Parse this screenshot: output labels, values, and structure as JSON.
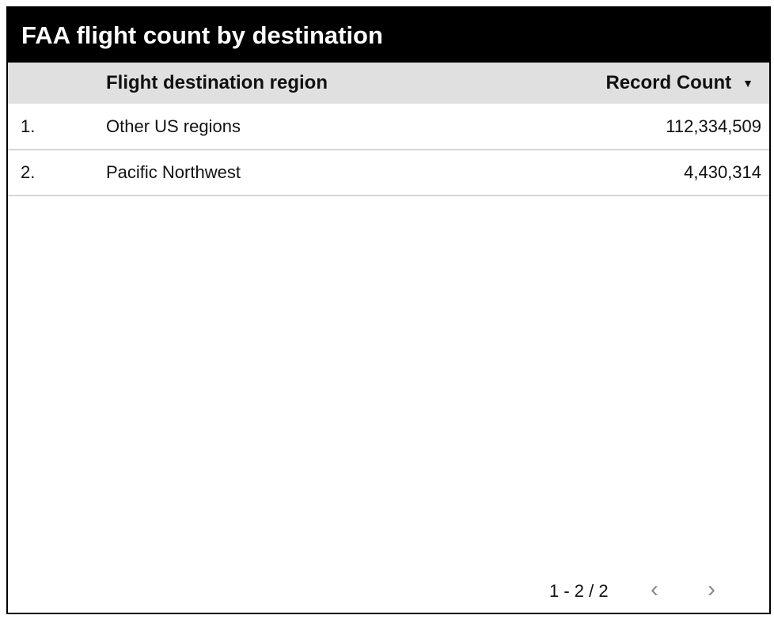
{
  "title": "FAA flight count by destination",
  "table": {
    "columns": [
      "Flight destination region",
      "Record Count"
    ],
    "sort": {
      "column": "Record Count",
      "direction": "descending",
      "icon": "sort-down-icon"
    },
    "rows": [
      {
        "index": "1.",
        "region": "Other US regions",
        "count": "112,334,509"
      },
      {
        "index": "2.",
        "region": "Pacific Northwest",
        "count": "4,430,314"
      }
    ]
  },
  "pagination": {
    "label": "1 - 2 / 2",
    "prev_icon": "‹",
    "next_icon": "›"
  }
}
